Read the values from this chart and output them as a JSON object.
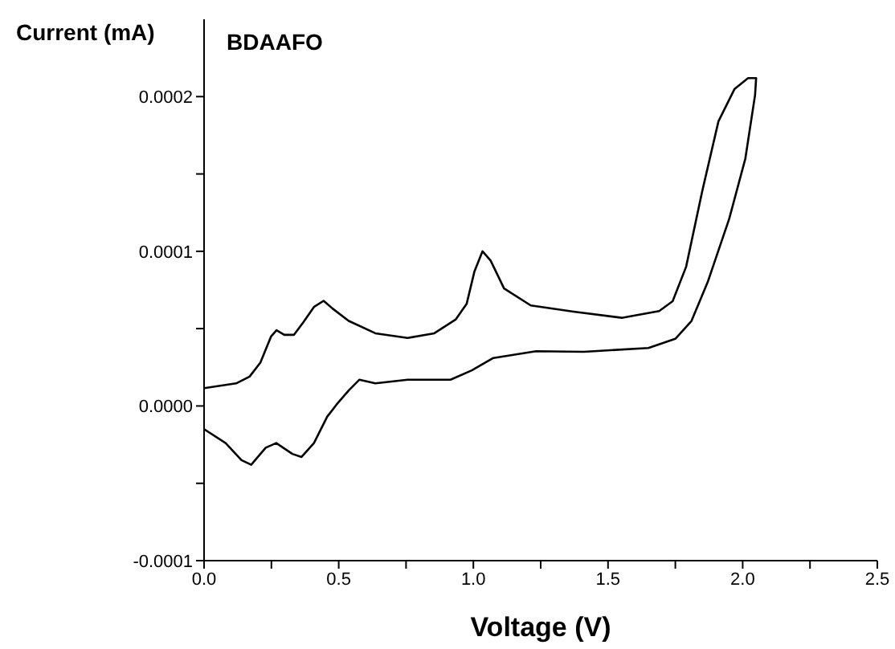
{
  "chart_data": {
    "type": "line",
    "xlabel": "Voltage (V)",
    "ylabel": "Current (mA)",
    "annotations": [
      "BDAAFO"
    ],
    "x": [
      0,
      0.119,
      0.169,
      0.209,
      0.249,
      0.269,
      0.298,
      0.334,
      0.368,
      0.408,
      0.444,
      0.477,
      0.537,
      0.636,
      0.756,
      0.855,
      0.935,
      0.975,
      1.004,
      1.034,
      1.064,
      1.114,
      1.213,
      1.372,
      1.551,
      1.69,
      1.74,
      1.79,
      1.85,
      1.91,
      1.97,
      2.02,
      2.05,
      2.046,
      2.01,
      1.95,
      1.87,
      1.81,
      1.75,
      1.65,
      1.41,
      1.233,
      1.074,
      0.994,
      0.915,
      0.756,
      0.636,
      0.577,
      0.537,
      0.497,
      0.457,
      0.408,
      0.362,
      0.328,
      0.268,
      0.229,
      0.175,
      0.139,
      0.08,
      0
    ],
    "series": [
      {
        "color": "#000000",
        "values": [
          1.15e-05,
          1.46e-05,
          1.9e-05,
          2.8e-05,
          4.5e-05,
          4.9e-05,
          4.6e-05,
          4.6e-05,
          5.4e-05,
          6.4e-05,
          6.8e-05,
          6.3e-05,
          5.5e-05,
          4.7e-05,
          4.4e-05,
          4.7e-05,
          5.6e-05,
          6.6e-05,
          8.7e-05,
          0.0001,
          9.4e-05,
          7.6e-05,
          6.5e-05,
          6.1e-05,
          5.7e-05,
          6.14e-05,
          6.77e-05,
          9e-05,
          0.000139,
          0.000184,
          0.000205,
          0.000212,
          0.000212,
          0.000201,
          0.00016,
          0.000121,
          8e-05,
          5.5e-05,
          4.34e-05,
          3.75e-05,
          3.5e-05,
          3.54e-05,
          3.1e-05,
          2.3e-05,
          1.7e-05,
          1.7e-05,
          1.46e-05,
          1.7e-05,
          1e-05,
          2e-06,
          -7e-06,
          -2.4e-05,
          -3.3e-05,
          -3.1e-05,
          -2.4e-05,
          -2.7e-05,
          -3.8e-05,
          -3.5e-05,
          -2.4e-05,
          -1.5e-05
        ]
      }
    ],
    "xlim": [
      0,
      2.5
    ],
    "xticks": [
      {
        "value": 0,
        "label": "0.0"
      },
      {
        "value": 0.25,
        "label": null
      },
      {
        "value": 0.5,
        "label": "0.5"
      },
      {
        "value": 0.75,
        "label": null
      },
      {
        "value": 1,
        "label": "1.0"
      },
      {
        "value": 1.25,
        "label": null
      },
      {
        "value": 1.5,
        "label": "1.5"
      },
      {
        "value": 1.75,
        "label": null
      },
      {
        "value": 2,
        "label": "2.0"
      },
      {
        "value": 2.25,
        "label": null
      },
      {
        "value": 2.5,
        "label": "2.5"
      }
    ],
    "ylim": [
      -0.0001,
      0.00025
    ],
    "yticks": [
      {
        "value": -0.0001,
        "label": "-0.0001"
      },
      {
        "value": -5e-05,
        "label": null
      },
      {
        "value": 0,
        "label": "0.0000"
      },
      {
        "value": 5e-05,
        "label": null
      },
      {
        "value": 0.0001,
        "label": "0.0001"
      },
      {
        "value": 0.00015,
        "label": null
      },
      {
        "value": 0.0002,
        "label": "0.0002"
      }
    ]
  }
}
